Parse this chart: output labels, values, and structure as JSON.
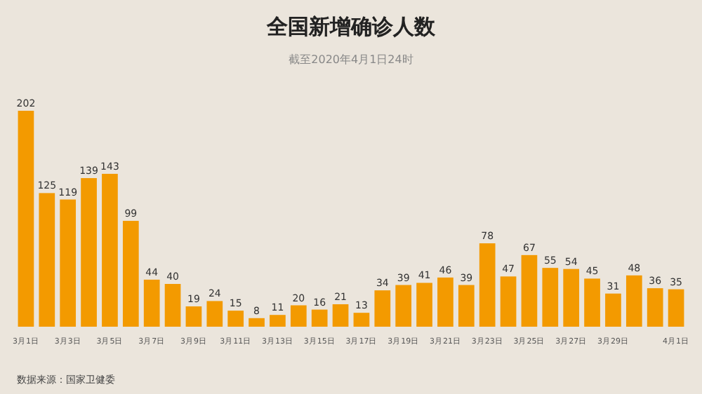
{
  "chart_data": {
    "type": "bar",
    "title": "全国新增确诊人数",
    "subtitle": "截至2020年4月1日24时",
    "categories": [
      "3月1日",
      null,
      "3月3日",
      null,
      "3月5日",
      null,
      "3月7日",
      null,
      "3月9日",
      null,
      "3月11日",
      null,
      "3月13日",
      null,
      "3月15日",
      null,
      "3月17日",
      null,
      "3月19日",
      null,
      "3月21日",
      null,
      "3月23日",
      null,
      "3月25日",
      null,
      "3月27日",
      null,
      "3月29日",
      null,
      null,
      "4月1日"
    ],
    "values": [
      202,
      125,
      119,
      139,
      143,
      99,
      44,
      40,
      19,
      24,
      15,
      8,
      11,
      20,
      16,
      21,
      13,
      34,
      39,
      41,
      46,
      39,
      78,
      47,
      67,
      55,
      54,
      45,
      31,
      48,
      36,
      35
    ],
    "color": "#f39a00",
    "data_labels": true,
    "annotations": [
      "数据来源：国家卫健委"
    ]
  }
}
